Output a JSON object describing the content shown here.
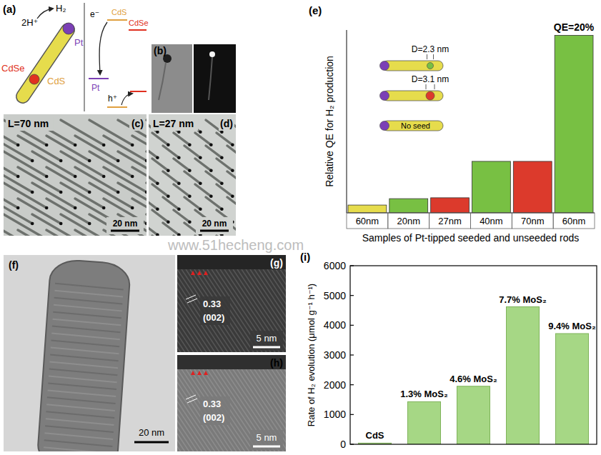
{
  "chart_data": [
    {
      "type": "bar",
      "panel": "(e)",
      "y_label": "Relative QE for H₂ production",
      "x_label": "Samples of Pt-tipped seeded and unseeded rods",
      "categories": [
        "60nm",
        "20nm",
        "27nm",
        "40nm",
        "70nm",
        "60nm"
      ],
      "values": [
        4.4,
        8,
        8.5,
        29,
        29,
        100
      ],
      "colors": [
        "#e6dc4c",
        "#78c043",
        "#dc3a2c",
        "#78c043",
        "#dc3a2c",
        "#78c043"
      ],
      "ylim": [
        0,
        103
      ],
      "grid": false,
      "tick_labels": "x",
      "annotations": [
        {
          "text": "QE=20%",
          "index": 5
        }
      ],
      "inset": [
        {
          "label": "D=2.3 nm",
          "color": "#78c043"
        },
        {
          "label": "D=3.1 nm",
          "color": "#dc3a2c"
        },
        {
          "label": "No seed"
        }
      ]
    },
    {
      "type": "bar",
      "panel": "(i)",
      "y_label": "Rate of H₂ evolution (μmol g⁻¹ h⁻¹)",
      "categories": [
        "CdS",
        "1.3% MoS₂",
        "4.6% MoS₂",
        "7.7% MoS₂",
        "9.4% MoS₂"
      ],
      "values": [
        40,
        1430,
        1950,
        4620,
        3720
      ],
      "color": "#a6d785",
      "ylim": [
        0,
        6000
      ],
      "yticks": [
        0,
        1000,
        2000,
        3000,
        4000,
        5000,
        6000
      ],
      "grid": false,
      "tick_labels": "y"
    }
  ],
  "panels": {
    "a": {
      "letter": "(a)",
      "reaction": [
        "2H⁺",
        "H₂"
      ],
      "parts": [
        "Pt",
        "CdSe",
        "CdS"
      ],
      "energy": [
        "e⁻",
        "CdS",
        "CdSe",
        "Pt",
        "h⁺"
      ]
    },
    "b": {
      "letter": "(b)"
    },
    "c": {
      "letter": "(c)",
      "title": "L=70 nm",
      "scale_bar": "20 nm"
    },
    "d": {
      "letter": "(d)",
      "title": "L=27 nm",
      "scale_bar": "20 nm"
    },
    "f": {
      "letter": "(f)",
      "scale_bar": "20 nm"
    },
    "g": {
      "letter": "(g)",
      "spacing": "0.33",
      "plane": "(002)",
      "scale_bar": "5 nm"
    },
    "h": {
      "letter": "(h)",
      "spacing": "0.33",
      "plane": "(002)",
      "scale_bar": "5 nm"
    }
  },
  "watermark": "www.51hecheng.com"
}
